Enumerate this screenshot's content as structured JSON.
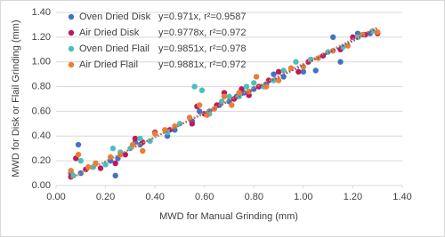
{
  "chart_data": {
    "type": "scatter",
    "xlabel": "MWD for Manual Grinding (mm)",
    "ylabel": "MWD for Disk or Flail Grinding (mm)",
    "xlim": [
      0,
      1.4
    ],
    "xticks": [
      {
        "value": 0,
        "label": "0.00"
      },
      {
        "value": 0.2,
        "label": "0.20"
      },
      {
        "value": 0.4,
        "label": "0.40"
      },
      {
        "value": 0.6,
        "label": "0.60"
      },
      {
        "value": 0.8,
        "label": "0.80"
      },
      {
        "value": 1.0,
        "label": "1.00"
      },
      {
        "value": 1.2,
        "label": "1.20"
      },
      {
        "value": 1.4,
        "label": "1.40"
      }
    ],
    "ylim": [
      0,
      1.4
    ],
    "yticks": [
      {
        "value": 0,
        "label": "0.00"
      },
      {
        "value": 0.2,
        "label": "0.20"
      },
      {
        "value": 0.4,
        "label": "0.40"
      },
      {
        "value": 0.6,
        "label": "0.60"
      },
      {
        "value": 0.8,
        "label": "0.80"
      },
      {
        "value": 1.0,
        "label": "1.00"
      },
      {
        "value": 1.2,
        "label": "1.20"
      },
      {
        "value": 1.4,
        "label": "1.40"
      }
    ],
    "grid": true,
    "legend": "top-left",
    "series": [
      {
        "name": "Oven Dried Disk",
        "color": "#4472c4",
        "trendline": {
          "slope": 0.971,
          "r2": 0.9587,
          "label": "y=0.971x, r²=0.9587"
        },
        "x": [
          0.06,
          0.09,
          0.1,
          0.15,
          0.22,
          0.24,
          0.25,
          0.32,
          0.34,
          0.45,
          0.48,
          0.55,
          0.58,
          0.62,
          0.66,
          0.7,
          0.73,
          0.76,
          0.8,
          0.85,
          0.88,
          0.92,
          1.0,
          1.05,
          1.12,
          1.15,
          1.22,
          1.27
        ],
        "values": [
          0.1,
          0.33,
          0.1,
          0.15,
          0.2,
          0.08,
          0.22,
          0.35,
          0.33,
          0.4,
          0.45,
          0.52,
          0.6,
          0.6,
          0.65,
          0.68,
          0.72,
          0.75,
          0.78,
          0.82,
          0.9,
          0.88,
          0.92,
          0.93,
          1.2,
          1.0,
          1.23,
          1.23
        ]
      },
      {
        "name": "Air Dried Disk",
        "color": "#c0185c",
        "trendline": {
          "slope": 0.9778,
          "r2": 0.972,
          "label": "y=0.9778x, r²=0.972"
        },
        "x": [
          0.06,
          0.08,
          0.12,
          0.18,
          0.24,
          0.28,
          0.32,
          0.35,
          0.4,
          0.46,
          0.55,
          0.57,
          0.6,
          0.65,
          0.68,
          0.72,
          0.75,
          0.78,
          0.82,
          0.86,
          0.9,
          0.98,
          1.02,
          1.08,
          1.15,
          1.2,
          1.25,
          1.3
        ],
        "values": [
          0.07,
          0.22,
          0.13,
          0.14,
          0.18,
          0.25,
          0.38,
          0.35,
          0.43,
          0.45,
          0.5,
          0.64,
          0.58,
          0.65,
          0.75,
          0.7,
          0.78,
          0.73,
          0.8,
          0.85,
          0.92,
          0.92,
          1.0,
          1.05,
          1.1,
          1.2,
          1.22,
          1.23
        ]
      },
      {
        "name": "Oven Dried Flail",
        "color": "#4bbfbf",
        "trendline": {
          "slope": 0.9851,
          "r2": 0.978,
          "label": "y=0.9851x, r²=0.978"
        },
        "x": [
          0.07,
          0.1,
          0.15,
          0.2,
          0.23,
          0.26,
          0.3,
          0.34,
          0.38,
          0.45,
          0.5,
          0.56,
          0.59,
          0.62,
          0.67,
          0.7,
          0.74,
          0.77,
          0.8,
          0.84,
          0.88,
          0.92,
          0.97,
          1.03,
          1.1,
          1.16,
          1.22,
          1.28
        ],
        "values": [
          0.08,
          0.2,
          0.15,
          0.17,
          0.3,
          0.27,
          0.3,
          0.38,
          0.36,
          0.43,
          0.5,
          0.8,
          0.77,
          0.58,
          0.68,
          0.72,
          0.72,
          0.8,
          0.83,
          0.8,
          0.85,
          0.93,
          1.0,
          1.02,
          1.08,
          1.12,
          1.2,
          1.25
        ]
      },
      {
        "name": "Air Dried Flail",
        "color": "#ed7d31",
        "trendline": {
          "slope": 0.9881,
          "r2": 0.972,
          "label": "y=0.9881x, r²=0.972"
        },
        "x": [
          0.06,
          0.09,
          0.13,
          0.16,
          0.22,
          0.26,
          0.31,
          0.35,
          0.4,
          0.44,
          0.48,
          0.54,
          0.58,
          0.61,
          0.64,
          0.68,
          0.71,
          0.74,
          0.78,
          0.81,
          0.85,
          0.9,
          0.95,
          1.0,
          1.06,
          1.12,
          1.18,
          1.24,
          1.3
        ],
        "values": [
          0.12,
          0.25,
          0.15,
          0.18,
          0.23,
          0.25,
          0.33,
          0.28,
          0.42,
          0.45,
          0.48,
          0.55,
          0.65,
          0.57,
          0.62,
          0.72,
          0.65,
          0.75,
          0.76,
          0.88,
          0.8,
          0.85,
          0.95,
          0.96,
          1.03,
          1.09,
          1.13,
          1.22,
          1.24
        ]
      }
    ]
  }
}
